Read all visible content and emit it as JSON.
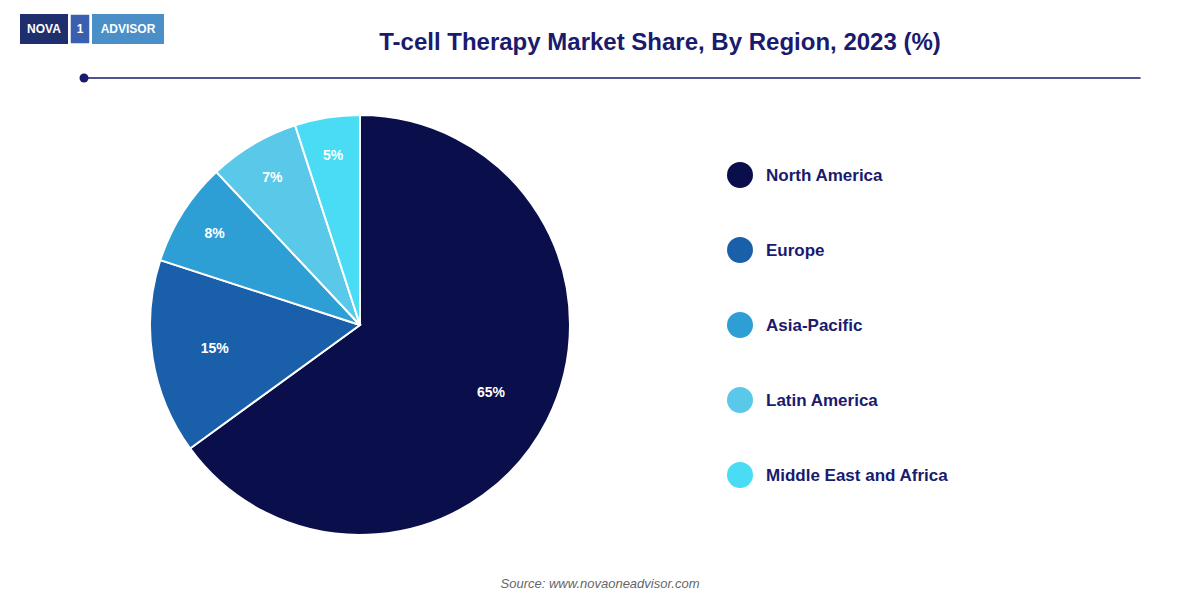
{
  "chart_data": {
    "type": "pie",
    "title": "T-cell Therapy Market Share, By Region, 2023 (%)",
    "categories": [
      "North America",
      "Europe",
      "Asia-Pacific",
      "Latin America",
      "Middle East and Africa"
    ],
    "values": [
      65,
      15,
      8,
      7,
      5
    ],
    "value_labels": [
      "65%",
      "15%",
      "8%",
      "7%",
      "5%"
    ],
    "colors": [
      "#0a0e4a",
      "#1a5faa",
      "#2e9fd4",
      "#5ac8e8",
      "#4adcf5"
    ],
    "data_labels": true,
    "legend": "right",
    "annotations": [
      "Source: www.novaoneadvisor.com",
      "NOVA",
      "1",
      "ADVISOR"
    ]
  }
}
